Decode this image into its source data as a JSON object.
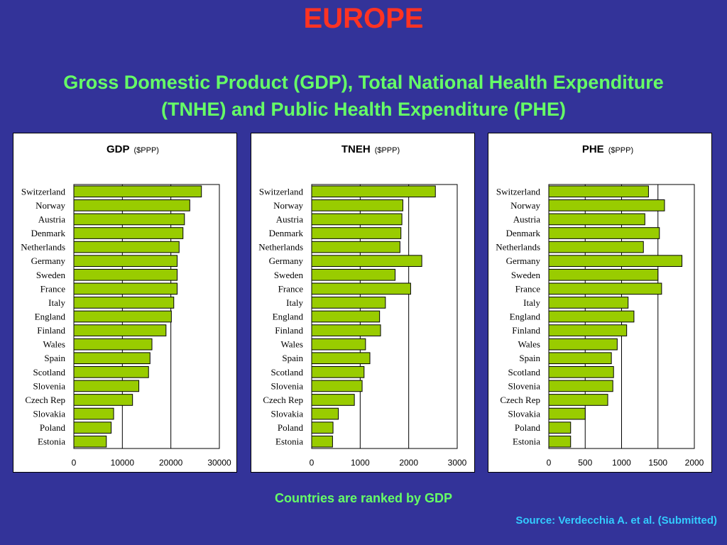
{
  "title": "EUROPE",
  "subtitle_line1": "Gross Domestic Product (GDP), Total National Health Expenditure",
  "subtitle_line2": "(TNHE) and Public Health Expenditure (PHE)",
  "note": "Countries are ranked by GDP",
  "source": "Source: Verdecchia A. et al. (Submitted)",
  "colors": {
    "bar": "#99cc00",
    "background": "#333399",
    "title": "#ff3322",
    "subtitle": "#66ff66",
    "source": "#33ccff"
  },
  "chart_data": [
    {
      "type": "bar",
      "orientation": "horizontal",
      "title": "GDP",
      "unit": "($PPP)",
      "categories": [
        "Switzerland",
        "Norway",
        "Austria",
        "Denmark",
        "Netherlands",
        "Germany",
        "Sweden",
        "France",
        "Italy",
        "England",
        "Finland",
        "Wales",
        "Spain",
        "Scotland",
        "Slovenia",
        "Czech Rep",
        "Slovakia",
        "Poland",
        "Estonia"
      ],
      "values": [
        26300,
        23900,
        22800,
        22500,
        21700,
        21300,
        21300,
        21300,
        20600,
        20100,
        19000,
        16100,
        15700,
        15400,
        13400,
        12100,
        8200,
        7700,
        6700
      ],
      "xlim": [
        0,
        30000
      ],
      "ticks": [
        0,
        10000,
        20000,
        30000
      ],
      "grid": true
    },
    {
      "type": "bar",
      "orientation": "horizontal",
      "title": "TNEH",
      "unit": "($PPP)",
      "categories": [
        "Switzerland",
        "Norway",
        "Austria",
        "Denmark",
        "Netherlands",
        "Germany",
        "Sweden",
        "France",
        "Italy",
        "England",
        "Finland",
        "Wales",
        "Spain",
        "Scotland",
        "Slovenia",
        "Czech Rep",
        "Slovakia",
        "Poland",
        "Estonia"
      ],
      "values": [
        2550,
        1880,
        1860,
        1840,
        1820,
        2270,
        1720,
        2040,
        1520,
        1400,
        1420,
        1110,
        1200,
        1080,
        1040,
        880,
        550,
        440,
        430
      ],
      "xlim": [
        0,
        3000
      ],
      "ticks": [
        0,
        1000,
        2000,
        3000
      ],
      "grid": true
    },
    {
      "type": "bar",
      "orientation": "horizontal",
      "title": "PHE",
      "unit": "($PPP)",
      "categories": [
        "Switzerland",
        "Norway",
        "Austria",
        "Denmark",
        "Netherlands",
        "Germany",
        "Sweden",
        "France",
        "Italy",
        "England",
        "Finland",
        "Wales",
        "Spain",
        "Scotland",
        "Slovenia",
        "Czech Rep",
        "Slovakia",
        "Poland",
        "Estonia"
      ],
      "values": [
        1370,
        1590,
        1320,
        1520,
        1300,
        1830,
        1500,
        1550,
        1090,
        1170,
        1070,
        940,
        860,
        890,
        880,
        810,
        500,
        300,
        300
      ],
      "xlim": [
        0,
        2000
      ],
      "ticks": [
        0,
        500,
        1000,
        1500,
        2000
      ],
      "grid": true
    }
  ]
}
